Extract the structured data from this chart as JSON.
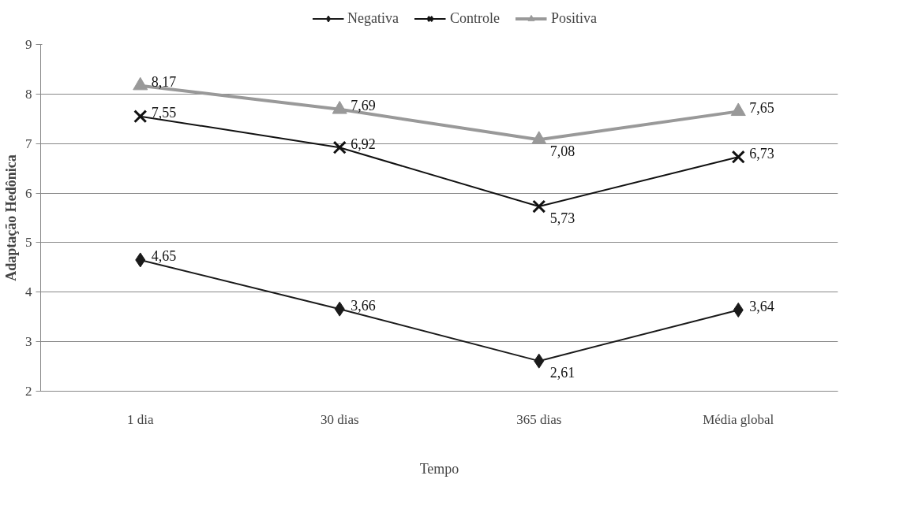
{
  "chart_data": {
    "type": "line",
    "xlabel": "Tempo",
    "ylabel": "Adaptação Hedônica",
    "categories": [
      "1 dia",
      "30 dias",
      "365 dias",
      "Média global"
    ],
    "ylim": [
      2,
      9
    ],
    "yticks": [
      2,
      3,
      4,
      5,
      6,
      7,
      8,
      9
    ],
    "grid": "y",
    "legend": "top",
    "series": [
      {
        "name": "Negativa",
        "color": "#1a1a1a",
        "marker": "diamond",
        "values": [
          4.65,
          3.66,
          2.61,
          3.64
        ],
        "value_labels": [
          "4,65",
          "3,66",
          "2,61",
          "3,64"
        ]
      },
      {
        "name": "Controle",
        "color": "#111111",
        "marker": "cross",
        "values": [
          7.55,
          6.92,
          5.73,
          6.73
        ],
        "value_labels": [
          "7,55",
          "6,92",
          "5,73",
          "6,73"
        ]
      },
      {
        "name": "Positiva",
        "color": "#999999",
        "marker": "triangle",
        "values": [
          8.17,
          7.69,
          7.08,
          7.65
        ],
        "value_labels": [
          "8,17",
          "7,69",
          "7,08",
          "7,65"
        ]
      }
    ]
  }
}
